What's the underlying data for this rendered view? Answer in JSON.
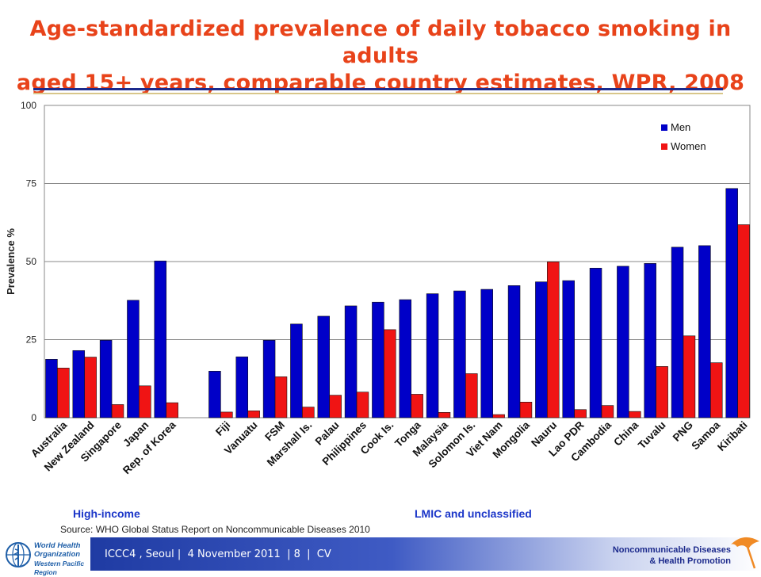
{
  "title": {
    "line1": "Age-standardized prevalence of daily tobacco smoking in adults",
    "line2": "aged 15+ years, comparable country estimates, WPR, 2008"
  },
  "chart_data": {
    "type": "bar",
    "title": "",
    "ylabel": "Prevalence %",
    "xlabel": "",
    "ylim": [
      0,
      100
    ],
    "yticks": [
      "0",
      "25",
      "50",
      "75",
      "100"
    ],
    "grid": true,
    "legend_position": "top-right",
    "categories": [
      "Australia",
      "New Zealand",
      "Singapore",
      "Japan",
      "Rep. of Korea",
      "Fiji",
      "Vanuatu",
      "FSM",
      "Marshall Is.",
      "Palau",
      "Philippines",
      "Cook Is.",
      "Tonga",
      "Malaysia",
      "Solomon Is.",
      "Viet Nam",
      "Mongolia",
      "Nauru",
      "Lao PDR",
      "Cambodia",
      "China",
      "Tuvalu",
      "PNG",
      "Samoa",
      "Kiribati"
    ],
    "series": [
      {
        "name": "Men",
        "color": "#0000c8",
        "values": [
          18.7,
          21.5,
          24.8,
          37.6,
          50.2,
          14.9,
          19.5,
          24.8,
          30.0,
          32.5,
          35.8,
          37.0,
          37.8,
          39.7,
          40.6,
          41.1,
          42.3,
          43.5,
          43.9,
          47.9,
          48.5,
          49.4,
          54.6,
          55.1,
          73.4
        ]
      },
      {
        "name": "Women",
        "color": "#f01414",
        "values": [
          15.9,
          19.4,
          4.2,
          10.2,
          4.8,
          1.8,
          2.2,
          13.1,
          3.4,
          7.2,
          8.2,
          28.2,
          7.5,
          1.7,
          14.1,
          1.0,
          5.0,
          49.9,
          2.6,
          3.9,
          2.0,
          16.4,
          26.2,
          17.6,
          61.8
        ]
      }
    ],
    "groups": [
      {
        "label": "High-income",
        "count": 5
      },
      {
        "label": "LMIC and unclassified",
        "count": 20
      }
    ]
  },
  "groups": {
    "high": "High-income",
    "lmic": "LMIC and unclassified"
  },
  "source": "Source: WHO Global Status Report on Noncommunicable Diseases 2010",
  "footer": {
    "text": "ICCC4 , Seoul |  4 November 2011  | 8  |  CV",
    "ncd_line1": "Noncommunicable Diseases",
    "ncd_line2": "& Health Promotion",
    "who_line1": "World Health",
    "who_line2": "Organization",
    "who_line3": "Western Pacific Region"
  },
  "colors": {
    "accent_title": "#e8431a",
    "rule": "#1c2a8c",
    "men": "#0000c8",
    "women": "#f01414"
  }
}
